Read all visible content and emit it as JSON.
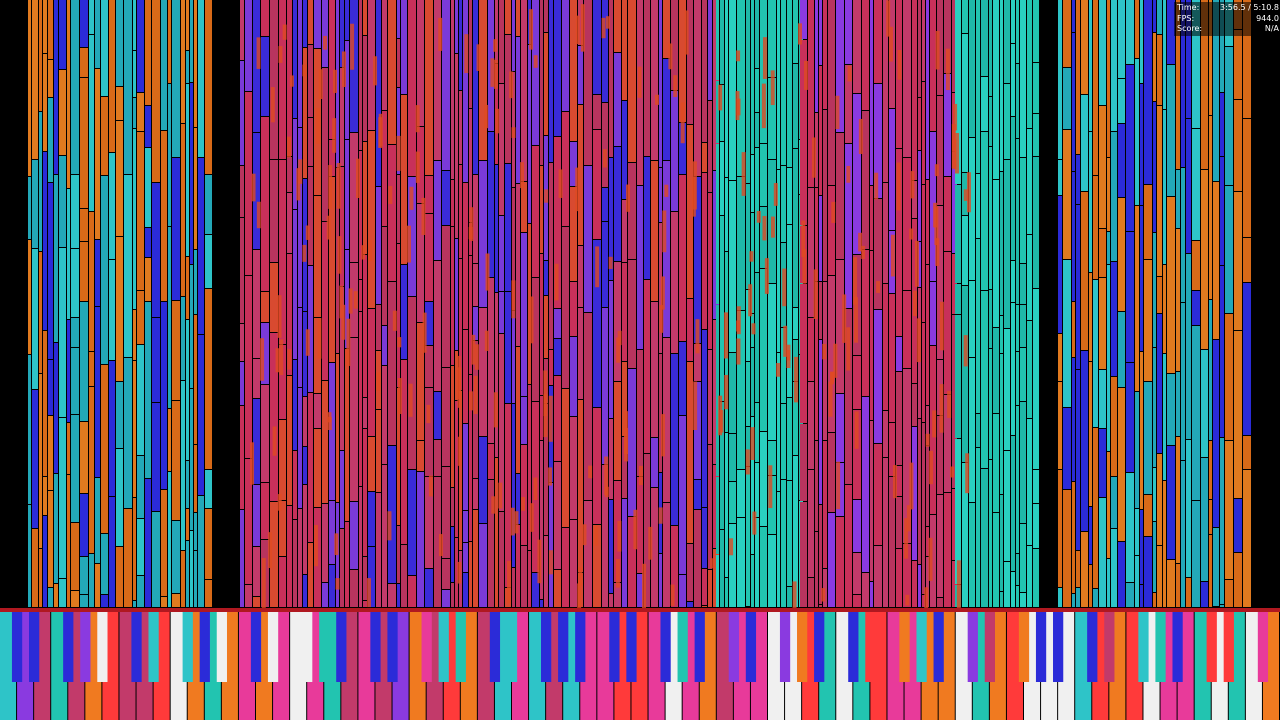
{
  "stats": {
    "rows": [
      {
        "label": "Time:",
        "value": "3:56.5 / 5:10.8"
      },
      {
        "label": "FPS:",
        "value": "944.0"
      },
      {
        "label": "Score:",
        "value": "N/A"
      }
    ]
  }
}
